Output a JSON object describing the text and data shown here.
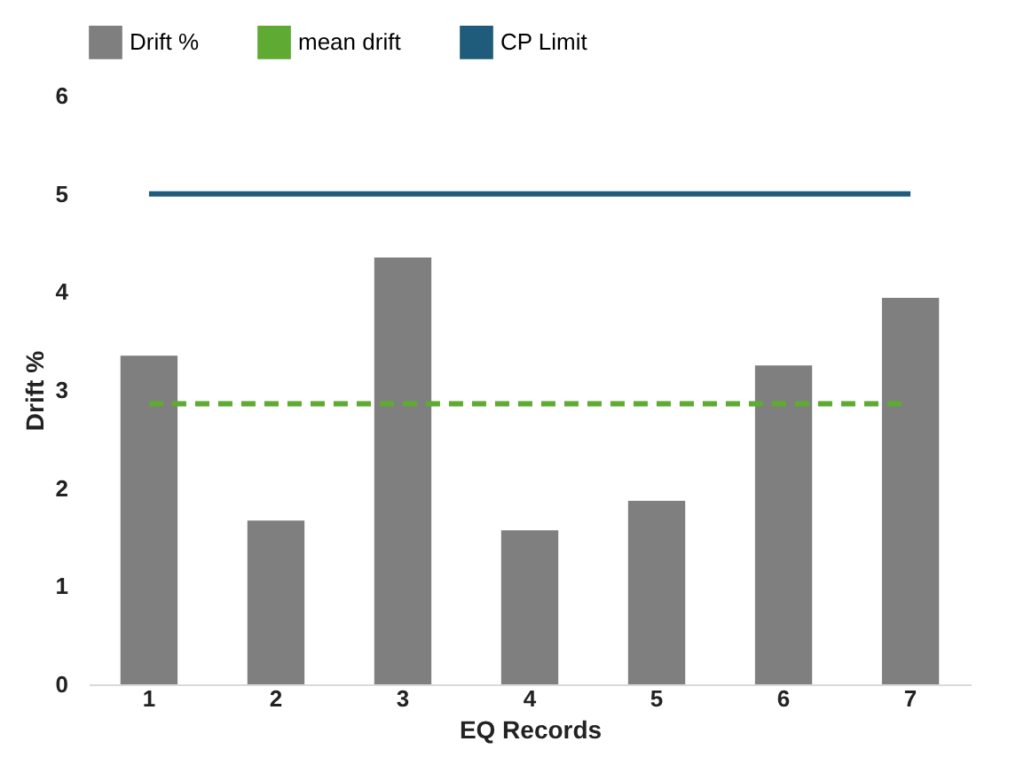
{
  "chart_data": {
    "type": "bar",
    "xlabel": "EQ Records",
    "ylabel": "Drift %",
    "categories": [
      "1",
      "2",
      "3",
      "4",
      "5",
      "6",
      "7"
    ],
    "series": [
      {
        "name": "Drift %",
        "color": "#7f7f7f",
        "values": [
          3.35,
          1.67,
          4.35,
          1.57,
          1.87,
          3.25,
          3.94
        ]
      },
      {
        "name": "mean drift",
        "type": "line",
        "line_style": "dashed",
        "color": "#5faa32",
        "values": [
          2.86,
          2.86,
          2.86,
          2.86,
          2.86,
          2.86,
          2.86
        ]
      },
      {
        "name": "CP Limit",
        "type": "line",
        "line_style": "solid",
        "color": "#1f5b7a",
        "values": [
          5,
          5,
          5,
          5,
          5,
          5,
          5
        ]
      }
    ],
    "ylim": [
      0,
      6
    ],
    "yticks": [
      0,
      1,
      2,
      3,
      4,
      5,
      6
    ],
    "grid": false,
    "legend": "top"
  }
}
